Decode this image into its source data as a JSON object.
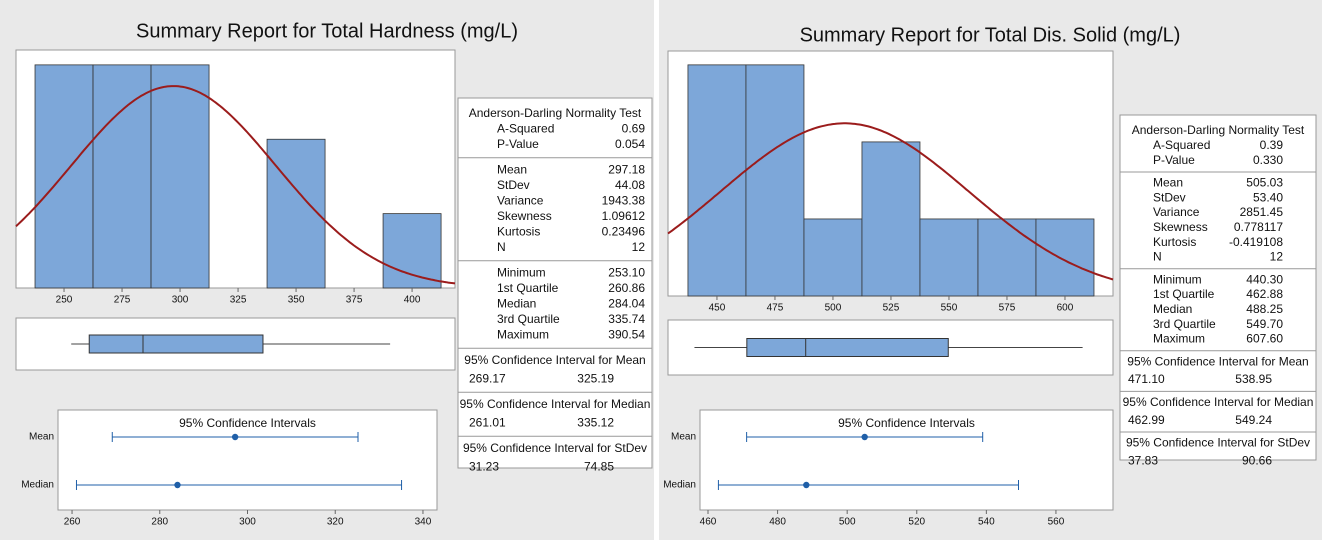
{
  "chart_data": [
    {
      "type": "summary_report",
      "title": "Summary Report for Total Hardness (mg/L)",
      "histogram": {
        "type": "histogram",
        "bins": [
          237.5,
          262.5,
          287.5,
          312.5,
          337.5,
          362.5,
          387.5,
          412.5
        ],
        "counts": [
          3,
          3,
          3,
          0,
          2,
          0,
          1
        ],
        "xlim": [
          229.3,
          418.5
        ],
        "xticks": [
          250,
          275,
          300,
          325,
          350,
          375,
          400
        ],
        "ylim": [
          0,
          3.2
        ],
        "color": "#7da7d9",
        "curve_color": "#9b1c1c"
      },
      "ci_plot": {
        "type": "interval",
        "title": "95% Confidence Intervals",
        "categories": [
          "Mean",
          "Median"
        ],
        "xlim": [
          256.8,
          343.2
        ],
        "xticks": [
          260,
          280,
          300,
          320,
          340
        ],
        "color": "#1f5fa8"
      },
      "stats": {
        "normality": {
          "title": "Anderson-Darling Normality Test",
          "rows": [
            [
              "A-Squared",
              "0.69"
            ],
            [
              "P-Value",
              "0.054"
            ]
          ]
        },
        "descriptive": {
          "rows": [
            [
              "Mean",
              "297.18"
            ],
            [
              "StDev",
              "44.08"
            ],
            [
              "Variance",
              "1943.38"
            ],
            [
              "Skewness",
              "1.09612"
            ],
            [
              "Kurtosis",
              "0.23496"
            ],
            [
              "N",
              "12"
            ]
          ]
        },
        "quartiles": {
          "rows": [
            [
              "Minimum",
              "253.10"
            ],
            [
              "1st Quartile",
              "260.86"
            ],
            [
              "Median",
              "284.04"
            ],
            [
              "3rd Quartile",
              "335.74"
            ],
            [
              "Maximum",
              "390.54"
            ]
          ]
        },
        "intervals": [
          {
            "title": "95% Confidence Interval for Mean",
            "values": [
              "269.17",
              "325.19"
            ]
          },
          {
            "title": "95% Confidence Interval for Median",
            "values": [
              "261.01",
              "335.12"
            ]
          },
          {
            "title": "95% Confidence Interval for StDev",
            "values": [
              "31.23",
              "74.85"
            ]
          }
        ]
      }
    },
    {
      "type": "summary_report",
      "title": "Summary Report for Total Dis. Solid (mg/L)",
      "histogram": {
        "type": "histogram",
        "bins": [
          437.5,
          462.5,
          487.5,
          512.5,
          537.5,
          562.5,
          587.5,
          612.5
        ],
        "counts": [
          3,
          3,
          1,
          2,
          1,
          1,
          1
        ],
        "xlim": [
          428.9,
          620.7
        ],
        "xticks": [
          450,
          475,
          500,
          525,
          550,
          575,
          600
        ],
        "ylim": [
          0,
          3.18
        ],
        "color": "#7da7d9",
        "curve_color": "#9b1c1c"
      },
      "ci_plot": {
        "type": "interval",
        "title": "95% Confidence Intervals",
        "categories": [
          "Mean",
          "Median"
        ],
        "xlim": [
          457.7,
          576.4
        ],
        "xticks": [
          460,
          480,
          500,
          520,
          540,
          560
        ],
        "color": "#1f5fa8"
      },
      "stats": {
        "normality": {
          "title": "Anderson-Darling Normality Test",
          "rows": [
            [
              "A-Squared",
              "0.39"
            ],
            [
              "P-Value",
              "0.330"
            ]
          ]
        },
        "descriptive": {
          "rows": [
            [
              "Mean",
              "505.03"
            ],
            [
              "StDev",
              "53.40"
            ],
            [
              "Variance",
              "2851.45"
            ],
            [
              "Skewness",
              "0.778117"
            ],
            [
              "Kurtosis",
              "-0.419108"
            ],
            [
              "N",
              "12"
            ]
          ]
        },
        "quartiles": {
          "rows": [
            [
              "Minimum",
              "440.30"
            ],
            [
              "1st Quartile",
              "462.88"
            ],
            [
              "Median",
              "488.25"
            ],
            [
              "3rd Quartile",
              "549.70"
            ],
            [
              "Maximum",
              "607.60"
            ]
          ]
        },
        "intervals": [
          {
            "title": "95% Confidence Interval for Mean",
            "values": [
              "471.10",
              "538.95"
            ]
          },
          {
            "title": "95% Confidence Interval for Median",
            "values": [
              "462.99",
              "549.24"
            ]
          },
          {
            "title": "95% Confidence Interval for StDev",
            "values": [
              "37.83",
              "90.66"
            ]
          }
        ]
      }
    }
  ]
}
